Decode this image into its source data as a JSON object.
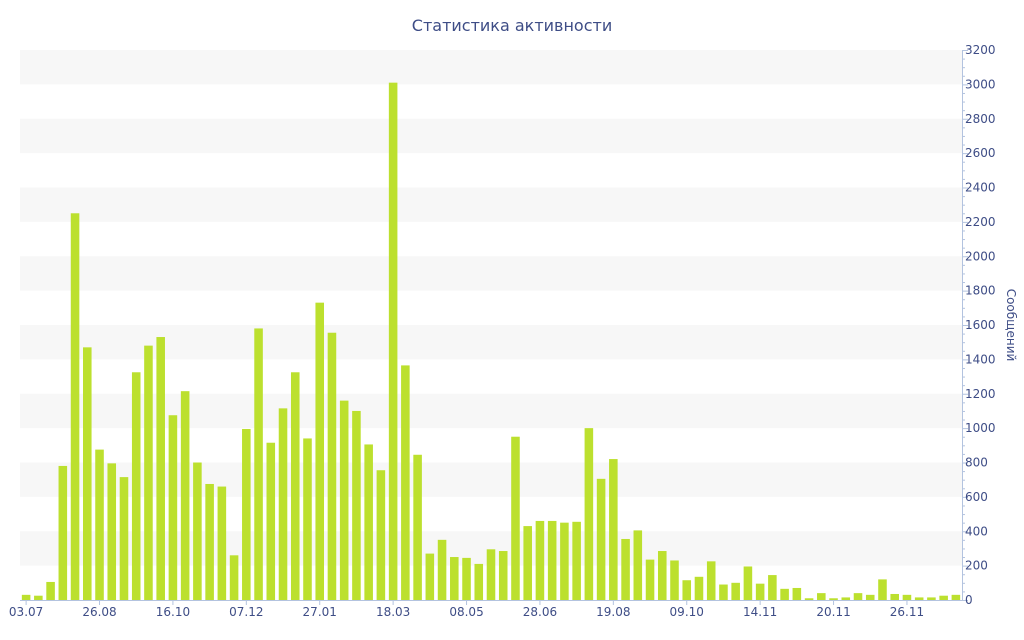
{
  "chart_data": {
    "type": "bar",
    "title": "Статистика активности",
    "ylabel": "Сообщений",
    "xlabel": "",
    "ylim": [
      0,
      3200
    ],
    "yticks": [
      0,
      200,
      400,
      600,
      800,
      1000,
      1200,
      1400,
      1600,
      1800,
      2000,
      2200,
      2400,
      2600,
      2800,
      3000,
      3200
    ],
    "y_axis_side": "right",
    "x_tick_labels": [
      {
        "index": 0,
        "label": "03.07"
      },
      {
        "index": 6,
        "label": "26.08"
      },
      {
        "index": 12,
        "label": "16.10"
      },
      {
        "index": 18,
        "label": "07.12"
      },
      {
        "index": 24,
        "label": "27.01"
      },
      {
        "index": 30,
        "label": "18.03"
      },
      {
        "index": 36,
        "label": "08.05"
      },
      {
        "index": 42,
        "label": "28.06"
      },
      {
        "index": 48,
        "label": "19.08"
      },
      {
        "index": 54,
        "label": "09.10"
      },
      {
        "index": 60,
        "label": "14.11"
      },
      {
        "index": 66,
        "label": "20.11"
      },
      {
        "index": 72,
        "label": "26.11"
      }
    ],
    "grid": "horizontal-bands",
    "colors": {
      "bar": "#bce02e",
      "band": "#f7f7f7",
      "text": "#3e4d86",
      "axis": "#b3c3df"
    },
    "values": [
      30,
      25,
      105,
      780,
      2250,
      1470,
      875,
      795,
      715,
      1325,
      1480,
      1530,
      1075,
      1215,
      800,
      675,
      660,
      260,
      995,
      1580,
      915,
      1115,
      1325,
      940,
      1730,
      1555,
      1160,
      1100,
      905,
      755,
      3010,
      1365,
      845,
      270,
      350,
      250,
      245,
      210,
      295,
      285,
      950,
      430,
      460,
      460,
      450,
      455,
      1000,
      705,
      820,
      355,
      405,
      235,
      285,
      230,
      115,
      135,
      225,
      90,
      100,
      195,
      95,
      145,
      65,
      70,
      10,
      40,
      10,
      15,
      40,
      30,
      120,
      35,
      30,
      15,
      15,
      25,
      30
    ]
  }
}
